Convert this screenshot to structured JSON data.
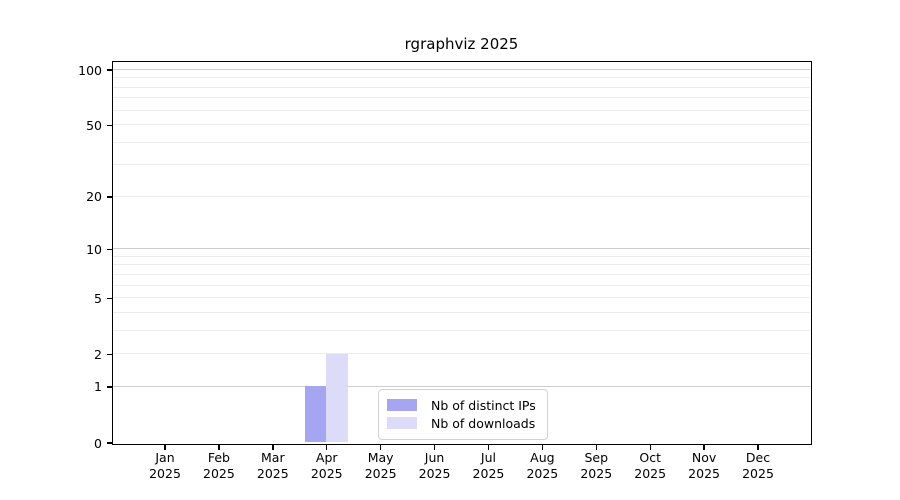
{
  "chart_data": {
    "type": "bar",
    "title": "rgraphviz 2025",
    "x_tick_months": [
      "Jan",
      "Feb",
      "Mar",
      "Apr",
      "May",
      "Jun",
      "Jul",
      "Aug",
      "Sep",
      "Oct",
      "Nov",
      "Dec"
    ],
    "x_tick_year": "2025",
    "categories": [
      "Jan 2025",
      "Feb 2025",
      "Mar 2025",
      "Apr 2025",
      "May 2025",
      "Jun 2025",
      "Jul 2025",
      "Aug 2025",
      "Sep 2025",
      "Oct 2025",
      "Nov 2025",
      "Dec 2025"
    ],
    "series": [
      {
        "name": "Nb of distinct IPs",
        "color": "#a5a5f2",
        "values": [
          0,
          0,
          0,
          1,
          0,
          0,
          0,
          0,
          0,
          0,
          0,
          0
        ]
      },
      {
        "name": "Nb of downloads",
        "color": "#dcdcf8",
        "values": [
          0,
          0,
          0,
          2,
          0,
          0,
          0,
          0,
          0,
          0,
          0,
          0
        ]
      }
    ],
    "yscale": "log1p",
    "ylim": [
      0,
      100
    ],
    "major_yticks": [
      0,
      1,
      2,
      5,
      10,
      20,
      50,
      100
    ],
    "major_gridlines": [
      1,
      10,
      100
    ],
    "minor_gridlines": [
      2,
      3,
      4,
      5,
      6,
      7,
      8,
      9,
      20,
      30,
      40,
      50,
      60,
      70,
      80,
      90
    ],
    "grid": true,
    "legend_position": "lower-center",
    "colors": {
      "major_grid": "#cdcdcd",
      "minor_grid": "#ececec",
      "axis": "#000000",
      "legend_border": "#d2d2d2",
      "background": "#ffffff"
    }
  }
}
